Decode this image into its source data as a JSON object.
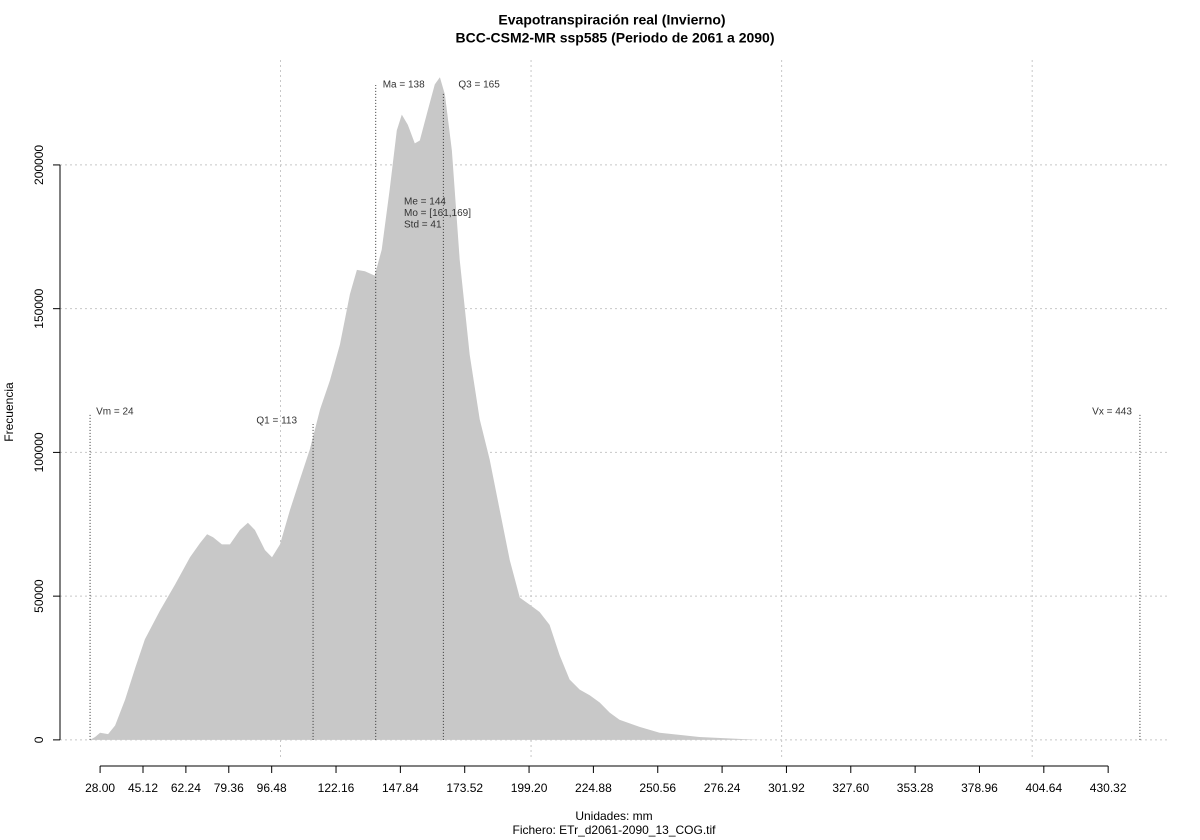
{
  "chart_data": {
    "type": "area",
    "title": "Evapotranspiración real (Invierno)",
    "subtitle": "BCC-CSM2-MR ssp585 (Periodo de 2061 a 2090)",
    "x_label": "Unidades: mm",
    "caption": "Fichero: ETr_d2061-2090_13_COG.tif",
    "y_label": "Frecuencia",
    "color": "#c8c8c8",
    "grid": true,
    "xlim": [
      12,
      455
    ],
    "ylim": [
      -7000,
      236500
    ],
    "xticks": [
      {
        "value": 28,
        "label": "28.00"
      },
      45.12,
      62.24,
      79.36,
      96.48,
      122.16,
      147.84,
      173.52,
      {
        "value": 199.2,
        "label": "199.20"
      },
      224.88,
      250.56,
      276.24,
      301.92,
      {
        "value": 327.6,
        "label": "327.60"
      },
      353.28,
      378.96,
      404.64,
      430.32
    ],
    "xgrid": [
      100,
      200,
      300,
      400
    ],
    "yticks": [
      0,
      50000,
      100000,
      150000,
      200000
    ],
    "x": [
      24.0,
      26.0,
      28.0,
      31.2,
      34.0,
      38.0,
      42.0,
      45.9,
      51.9,
      57.9,
      63.9,
      67.9,
      70.7,
      73.1,
      76.6,
      79.8,
      83.8,
      87.0,
      89.8,
      93.8,
      96.6,
      99.8,
      103.8,
      107.7,
      111.7,
      115.8,
      119.7,
      123.7,
      127.7,
      130.5,
      133.7,
      137.6,
      140.4,
      143.6,
      146.4,
      148.4,
      150.8,
      153.6,
      155.6,
      158.8,
      161.6,
      163.6,
      165.6,
      168.4,
      171.5,
      175.5,
      179.5,
      183.5,
      187.5,
      191.5,
      195.5,
      199.5,
      203.4,
      207.4,
      211.4,
      215.4,
      219.4,
      223.4,
      227.4,
      231.4,
      235.3,
      243.3,
      251.3,
      267.2,
      291.2,
      347.0,
      443
    ],
    "values": [
      0,
      1000,
      2500,
      2000,
      5000,
      14000,
      25000,
      35000,
      45000,
      54000,
      63500,
      68500,
      71500,
      70500,
      68000,
      68000,
      73000,
      75500,
      73000,
      66000,
      63500,
      68000,
      80000,
      90500,
      101000,
      115000,
      125000,
      137500,
      155000,
      163500,
      163000,
      161500,
      170500,
      191500,
      212000,
      217500,
      214000,
      207500,
      208500,
      219000,
      228000,
      230500,
      224500,
      205000,
      167000,
      134000,
      111500,
      97500,
      80000,
      62500,
      49500,
      47000,
      44500,
      40000,
      29500,
      21000,
      17500,
      15500,
      13000,
      9500,
      7000,
      4500,
      2500,
      1000,
      0,
      0,
      0
    ],
    "markers": [
      {
        "label": "Vm = 24",
        "value": 24
      },
      {
        "label": "Q1 = 113",
        "value": 113
      },
      {
        "label": "Ma = 138",
        "value": 138
      },
      {
        "label": "Q3 = 165",
        "value": 165
      },
      {
        "label": "Vx = 443",
        "value": 443
      }
    ],
    "stats": [
      "Me = 144",
      "Mo = [161,169]",
      "Std = 41"
    ]
  }
}
